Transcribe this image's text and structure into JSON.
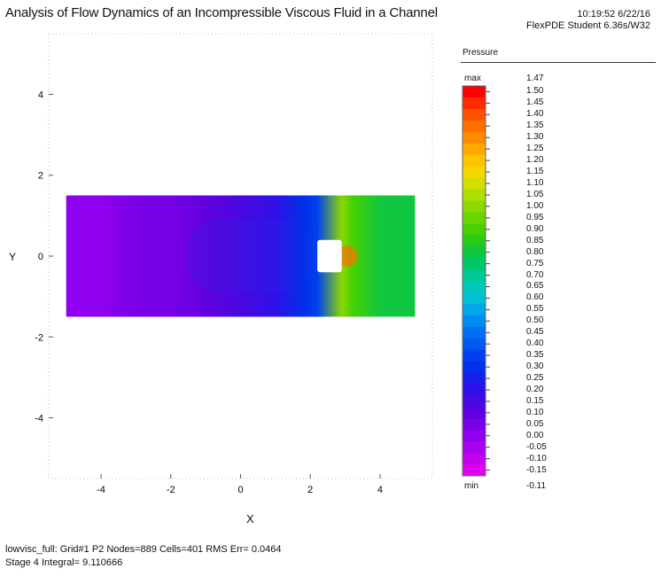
{
  "header": {
    "title": "Analysis of Flow Dynamics of an Incompressible Viscous Fluid in a Channel",
    "time": "10:19:52 6/22/16",
    "software": "FlexPDE Student 6.36s/W32"
  },
  "footer": {
    "line1": "lowvisc_full:  Grid#1  P2  Nodes=889 Cells=401 RMS Err= 0.0464",
    "line2": "Stage 4  Integral=  9.110666"
  },
  "chart_data": {
    "type": "heatmap",
    "title": "Analysis of Flow Dynamics of an Incompressible Viscous Fluid in a Channel",
    "xlabel": "X",
    "ylabel": "Y",
    "xlim": [
      -5.5,
      5.5
    ],
    "ylim": [
      -5.5,
      5.5
    ],
    "x_ticks": [
      -4,
      -2,
      0,
      2,
      4
    ],
    "y_ticks": [
      4,
      2,
      0,
      -2,
      -4
    ],
    "x_tick_labels": [
      "-4",
      "-2",
      "0",
      "2",
      "4"
    ],
    "y_tick_labels": [
      "4",
      "2",
      "0",
      "-2",
      "-4"
    ],
    "domain": {
      "x": [
        -5,
        5
      ],
      "y": [
        -1.5,
        1.5
      ]
    },
    "obstacle": {
      "x": [
        2.2,
        2.9
      ],
      "y": [
        -0.4,
        0.4
      ]
    },
    "quantity": "Pressure",
    "legend_title": "Pressure",
    "legend_max_label": "max",
    "legend_min_label": "min",
    "max_value": "1.47",
    "min_value": "-0.11",
    "scale_levels": [
      "1.50",
      "1.45",
      "1.40",
      "1.35",
      "1.30",
      "1.25",
      "1.20",
      "1.15",
      "1.10",
      "1.05",
      "1.00",
      "0.95",
      "0.90",
      "0.85",
      "0.80",
      "0.75",
      "0.70",
      "0.65",
      "0.60",
      "0.55",
      "0.50",
      "0.45",
      "0.40",
      "0.35",
      "0.30",
      "0.25",
      "0.20",
      "0.15",
      "0.10",
      "0.05",
      "0.00",
      "-0.05",
      "-0.10",
      "-0.15"
    ],
    "scale_colors": [
      "#ff0000",
      "#ff2a00",
      "#ff5000",
      "#ff7000",
      "#ff8c00",
      "#ffa800",
      "#ffc400",
      "#f2d800",
      "#d2e000",
      "#b0de00",
      "#8cd800",
      "#6ad400",
      "#48d000",
      "#28cc18",
      "#10c840",
      "#00c868",
      "#00c890",
      "#00c8b8",
      "#00c0d8",
      "#00a8e8",
      "#008cf0",
      "#0070f0",
      "#0058f0",
      "#0040f0",
      "#0030e8",
      "#1a1ee8",
      "#3010e8",
      "#4a08e0",
      "#6000e0",
      "#7800e8",
      "#9000f0",
      "#aa00f0",
      "#c400f0",
      "#e000f0"
    ],
    "pressure_field_description_x": [
      -5.0,
      -4.0,
      -3.0,
      -2.0,
      -1.0,
      0.0,
      1.0,
      1.8,
      2.2,
      2.9,
      3.2,
      4.0,
      5.0
    ],
    "pressure_field_values": [
      0.0,
      0.01,
      0.03,
      0.06,
      0.1,
      0.14,
      0.2,
      0.28,
      0.34,
      0.99,
      0.9,
      0.8,
      0.78
    ]
  }
}
